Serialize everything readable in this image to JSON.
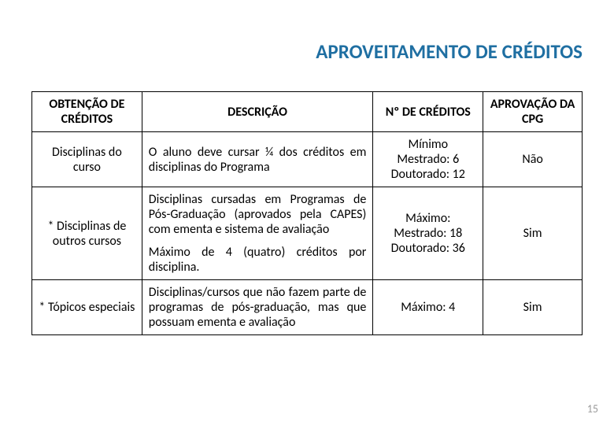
{
  "title": "APROVEITAMENTO DE CRÉDITOS",
  "title_color": "#1F6FA2",
  "title_fontsize": 25,
  "table": {
    "header_fontsize": 16,
    "cell_fontsize": 16,
    "border_color": "#000000",
    "columns": [
      "OBTENÇÃO DE CRÉDITOS",
      "DESCRIÇÃO",
      "Nº DE CRÉDITOS",
      "APROVAÇÃO DA CPG"
    ],
    "rows": [
      {
        "c1": "Disciplinas do curso",
        "c2": "O aluno deve cursar ¼ dos créditos em disciplinas do Programa",
        "c3a": "Mínimo",
        "c3b": "Mestrado: 6",
        "c3c": "Doutorado: 12",
        "c4": "Não"
      },
      {
        "c1": "* Disciplinas de outros cursos",
        "c2a": "Disciplinas cursadas em Programas de Pós-Graduação (aprovados pela CAPES) com ementa e sistema de avaliação",
        "c2b": "Máximo de 4 (quatro) créditos por disciplina.",
        "c3a": "Máximo:",
        "c3b": "Mestrado: 18",
        "c3c": "Doutorado: 36",
        "c4": "Sim"
      },
      {
        "c1": "* Tópicos especiais",
        "c2": "Disciplinas/cursos que não fazem parte de programas de pós-graduação, mas que possuam ementa e avaliação",
        "c3a": "Máximo: 4",
        "c4": "Sim"
      }
    ]
  },
  "page_number": "15",
  "page_number_color": "#9a9a9a",
  "page_number_fontsize": 14
}
